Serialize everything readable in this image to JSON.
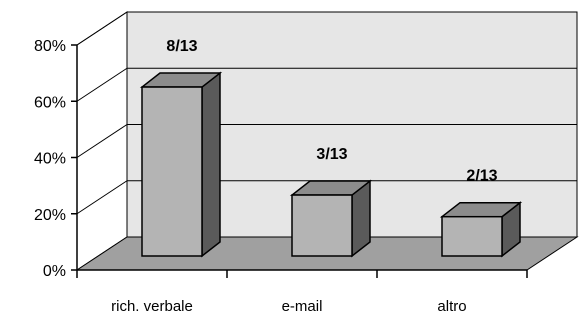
{
  "chart_data": {
    "type": "bar",
    "title": "",
    "xlabel": "",
    "ylabel": "",
    "categories": [
      "rich. verbale",
      "e-mail",
      "altro"
    ],
    "values": [
      61.5,
      23.1,
      15.4
    ],
    "data_labels": [
      "8/13",
      "3/13",
      "2/13"
    ],
    "ylim": [
      0,
      80
    ],
    "yticks": [
      0,
      20,
      40,
      60,
      80
    ],
    "ytick_labels": [
      "0%",
      "20%",
      "40%",
      "60%",
      "80%"
    ],
    "grid": true,
    "legend": false,
    "style": "3d-column",
    "colors": {
      "bar_front": "#b4b4b4",
      "bar_top": "#8c8c8c",
      "bar_side": "#5a5a5a",
      "back_wall": "#e6e6e6",
      "floor": "#a0a0a0"
    }
  }
}
